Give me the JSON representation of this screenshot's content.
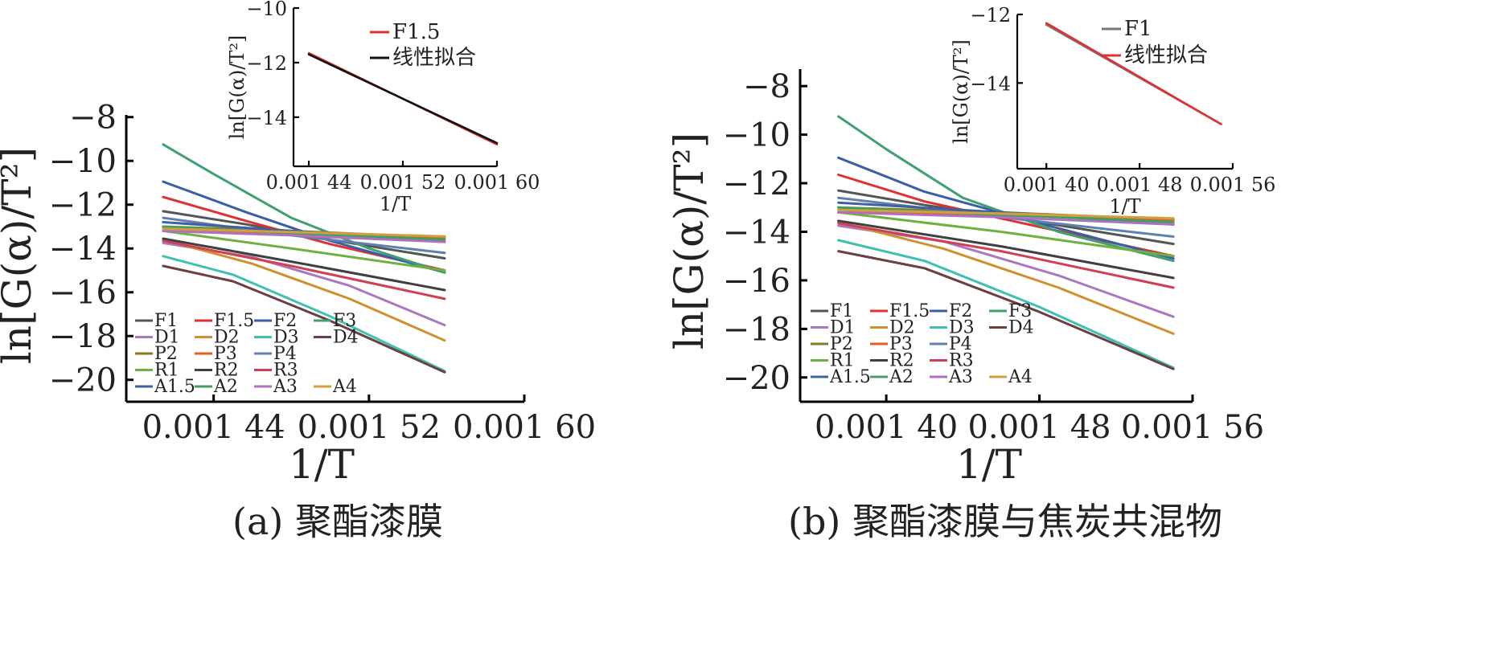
{
  "chart_data": [
    {
      "type": "line",
      "caption": "(a) 聚酯漆膜",
      "xlabel": "1/T",
      "ylabel": "ln[G(α)/T²]",
      "xlim": [
        0.001395,
        0.0016
      ],
      "ylim": [
        -21,
        -7.9
      ],
      "xticks": [
        0.00144,
        0.00152,
        0.0016
      ],
      "xtick_labels": [
        "0.001 44",
        "0.001 52",
        "0.001 60"
      ],
      "yticks": [
        -20,
        -18,
        -16,
        -14,
        -12,
        -10,
        -8
      ],
      "ytick_labels": [
        "−20",
        "−18",
        "−16",
        "−14",
        "−12",
        "−10",
        "−8"
      ],
      "legend_placement": "bottom-left",
      "series": [
        {
          "name": "F1",
          "color": "#555555",
          "points": [
            [
              0.001414,
              -12.3
            ],
            [
              0.001457,
              -12.9
            ],
            [
              0.0015,
              -13.6
            ],
            [
              0.001559,
              -14.45
            ]
          ]
        },
        {
          "name": "F1.5",
          "color": "#e03030",
          "points": [
            [
              0.001414,
              -11.65
            ],
            [
              0.001457,
              -12.75
            ],
            [
              0.0015,
              -13.8
            ],
            [
              0.001559,
              -15.0
            ]
          ]
        },
        {
          "name": "F2",
          "color": "#3a5fa8",
          "points": [
            [
              0.001414,
              -10.95
            ],
            [
              0.001457,
              -12.35
            ],
            [
              0.0015,
              -13.65
            ],
            [
              0.001559,
              -15.1
            ]
          ]
        },
        {
          "name": "F3",
          "color": "#3fa070",
          "points": [
            [
              0.001414,
              -9.25
            ],
            [
              0.00144,
              -10.6
            ],
            [
              0.00148,
              -12.6
            ],
            [
              0.00152,
              -14.0
            ],
            [
              0.001559,
              -15.1
            ]
          ]
        },
        {
          "name": "D1",
          "color": "#a878c0",
          "points": [
            [
              0.001414,
              -13.75
            ],
            [
              0.00146,
              -14.4
            ],
            [
              0.00151,
              -15.7
            ],
            [
              0.001559,
              -17.5
            ]
          ]
        },
        {
          "name": "D2",
          "color": "#d09030",
          "points": [
            [
              0.001414,
              -13.6
            ],
            [
              0.00146,
              -14.7
            ],
            [
              0.00151,
              -16.3
            ],
            [
              0.001559,
              -18.2
            ]
          ]
        },
        {
          "name": "D3",
          "color": "#40c0b0",
          "points": [
            [
              0.001414,
              -14.35
            ],
            [
              0.00145,
              -15.2
            ],
            [
              0.0015,
              -17.1
            ],
            [
              0.001559,
              -19.6
            ]
          ]
        },
        {
          "name": "D4",
          "color": "#6a4040",
          "points": [
            [
              0.001414,
              -14.8
            ],
            [
              0.00145,
              -15.5
            ],
            [
              0.0015,
              -17.3
            ],
            [
              0.001559,
              -19.65
            ]
          ]
        },
        {
          "name": "P2",
          "color": "#8a7a20",
          "points": [
            [
              0.001414,
              -13.0
            ],
            [
              0.00148,
              -13.2
            ],
            [
              0.001559,
              -13.5
            ]
          ]
        },
        {
          "name": "P3",
          "color": "#e06020",
          "points": [
            [
              0.001414,
              -13.2
            ],
            [
              0.00148,
              -13.3
            ],
            [
              0.001559,
              -13.5
            ]
          ]
        },
        {
          "name": "P4",
          "color": "#6080b0",
          "points": [
            [
              0.001414,
              -12.6
            ],
            [
              0.00148,
              -13.4
            ],
            [
              0.001559,
              -14.2
            ]
          ]
        },
        {
          "name": "R1",
          "color": "#70b040",
          "points": [
            [
              0.001414,
              -13.2
            ],
            [
              0.00148,
              -14.0
            ],
            [
              0.001559,
              -15.0
            ]
          ]
        },
        {
          "name": "R2",
          "color": "#404040",
          "points": [
            [
              0.001414,
              -13.55
            ],
            [
              0.00148,
              -14.6
            ],
            [
              0.001559,
              -15.9
            ]
          ]
        },
        {
          "name": "R3",
          "color": "#d04050",
          "points": [
            [
              0.001414,
              -13.65
            ],
            [
              0.00148,
              -14.8
            ],
            [
              0.001559,
              -16.3
            ]
          ]
        },
        {
          "name": "A1.5",
          "color": "#4060a0",
          "points": [
            [
              0.001414,
              -12.8
            ],
            [
              0.00148,
              -13.2
            ],
            [
              0.001559,
              -13.7
            ]
          ]
        },
        {
          "name": "A2",
          "color": "#40a060",
          "points": [
            [
              0.001414,
              -13.0
            ],
            [
              0.00148,
              -13.3
            ],
            [
              0.001559,
              -13.6
            ]
          ]
        },
        {
          "name": "A3",
          "color": "#b070c0",
          "points": [
            [
              0.001414,
              -13.2
            ],
            [
              0.00148,
              -13.4
            ],
            [
              0.001559,
              -13.7
            ]
          ]
        },
        {
          "name": "A4",
          "color": "#d0a040",
          "points": [
            [
              0.001414,
              -13.1
            ],
            [
              0.00148,
              -13.25
            ],
            [
              0.001559,
              -13.45
            ]
          ]
        }
      ],
      "legend": [
        {
          "name": "F1",
          "color": "#555555"
        },
        {
          "name": "F1.5",
          "color": "#e03030"
        },
        {
          "name": "F2",
          "color": "#3a5fa8"
        },
        {
          "name": "F3",
          "color": "#3fa070"
        },
        {
          "name": "D1",
          "color": "#a878c0"
        },
        {
          "name": "D2",
          "color": "#d09030"
        },
        {
          "name": "D3",
          "color": "#40c0b0"
        },
        {
          "name": "D4",
          "color": "#6a4040"
        },
        {
          "name": "P2",
          "color": "#8a7a20"
        },
        {
          "name": "P3",
          "color": "#e06020"
        },
        {
          "name": "P4",
          "color": "#6080b0"
        },
        {
          "name": "",
          "color": ""
        },
        {
          "name": "R1",
          "color": "#70b040"
        },
        {
          "name": "R2",
          "color": "#404040"
        },
        {
          "name": "R3",
          "color": "#d04050"
        },
        {
          "name": "",
          "color": ""
        },
        {
          "name": "A1.5",
          "color": "#4060a0"
        },
        {
          "name": "A2",
          "color": "#40a060"
        },
        {
          "name": "A3",
          "color": "#b070c0"
        },
        {
          "name": "A4",
          "color": "#d0a040"
        }
      ],
      "inset": {
        "xlabel": "1/T",
        "ylabel": "ln[G(α)/T²]",
        "xlim": [
          0.001427,
          0.0016
        ],
        "ylim": [
          -15.8,
          -10
        ],
        "xticks": [
          0.00144,
          0.00152,
          0.0016
        ],
        "xtick_labels": [
          "0.001 44",
          "0.001 52",
          "0.001 60"
        ],
        "yticks": [
          -14,
          -12,
          -10
        ],
        "ytick_labels": [
          "−14",
          "−12",
          "−10"
        ],
        "series": [
          {
            "name": "F1.5",
            "color": "#e03030",
            "points": [
              [
                0.00144,
                -11.65
              ],
              [
                0.0016,
                -15.0
              ]
            ]
          },
          {
            "name": "线性拟合",
            "color": "#111111",
            "points": [
              [
                0.00144,
                -11.7
              ],
              [
                0.0016,
                -14.95
              ]
            ]
          }
        ]
      }
    },
    {
      "type": "line",
      "caption": "(b) 聚酯漆膜与焦炭共混物",
      "xlabel": "1/T",
      "ylabel": "ln[G(α)/T²]",
      "xlim": [
        0.001355,
        0.00156
      ],
      "ylim": [
        -21,
        -7.3
      ],
      "xticks": [
        0.0014,
        0.00148,
        0.00156
      ],
      "xtick_labels": [
        "0.001 40",
        "0.001 48",
        "0.001 56"
      ],
      "yticks": [
        -20,
        -18,
        -16,
        -14,
        -12,
        -10,
        -8
      ],
      "ytick_labels": [
        "−20",
        "−18",
        "−16",
        "−14",
        "−12",
        "−10",
        "−8"
      ],
      "legend_placement": "bottom-left",
      "series": [
        {
          "name": "F1",
          "color": "#555555",
          "points": [
            [
              0.001375,
              -12.3
            ],
            [
              0.00142,
              -12.9
            ],
            [
              0.00148,
              -13.6
            ],
            [
              0.00155,
              -14.5
            ]
          ]
        },
        {
          "name": "F1.5",
          "color": "#e03030",
          "points": [
            [
              0.001375,
              -11.65
            ],
            [
              0.00142,
              -12.75
            ],
            [
              0.00148,
              -13.8
            ],
            [
              0.00155,
              -15.0
            ]
          ]
        },
        {
          "name": "F2",
          "color": "#3a5fa8",
          "points": [
            [
              0.001375,
              -10.95
            ],
            [
              0.00142,
              -12.35
            ],
            [
              0.00148,
              -13.65
            ],
            [
              0.00155,
              -15.1
            ]
          ]
        },
        {
          "name": "F3",
          "color": "#3fa070",
          "points": [
            [
              0.001375,
              -9.25
            ],
            [
              0.0014,
              -10.6
            ],
            [
              0.00144,
              -12.6
            ],
            [
              0.00149,
              -14.0
            ],
            [
              0.00155,
              -15.2
            ]
          ]
        },
        {
          "name": "D1",
          "color": "#a878c0",
          "points": [
            [
              0.001375,
              -13.75
            ],
            [
              0.00143,
              -14.4
            ],
            [
              0.00149,
              -15.8
            ],
            [
              0.00155,
              -17.5
            ]
          ]
        },
        {
          "name": "D2",
          "color": "#d09030",
          "points": [
            [
              0.001375,
              -13.6
            ],
            [
              0.00143,
              -14.7
            ],
            [
              0.00149,
              -16.3
            ],
            [
              0.00155,
              -18.2
            ]
          ]
        },
        {
          "name": "D3",
          "color": "#40c0b0",
          "points": [
            [
              0.001375,
              -14.35
            ],
            [
              0.00142,
              -15.2
            ],
            [
              0.00148,
              -17.1
            ],
            [
              0.00155,
              -19.6
            ]
          ]
        },
        {
          "name": "D4",
          "color": "#6a4040",
          "points": [
            [
              0.001375,
              -14.8
            ],
            [
              0.00142,
              -15.5
            ],
            [
              0.00148,
              -17.3
            ],
            [
              0.00155,
              -19.65
            ]
          ]
        },
        {
          "name": "P2",
          "color": "#8a7a20",
          "points": [
            [
              0.001375,
              -13.0
            ],
            [
              0.00146,
              -13.2
            ],
            [
              0.00155,
              -13.5
            ]
          ]
        },
        {
          "name": "P3",
          "color": "#e06020",
          "points": [
            [
              0.001375,
              -13.2
            ],
            [
              0.00146,
              -13.3
            ],
            [
              0.00155,
              -13.5
            ]
          ]
        },
        {
          "name": "P4",
          "color": "#6080b0",
          "points": [
            [
              0.001375,
              -12.6
            ],
            [
              0.00146,
              -13.4
            ],
            [
              0.00155,
              -14.2
            ]
          ]
        },
        {
          "name": "R1",
          "color": "#70b040",
          "points": [
            [
              0.001375,
              -13.2
            ],
            [
              0.00146,
              -14.0
            ],
            [
              0.00155,
              -15.0
            ]
          ]
        },
        {
          "name": "R2",
          "color": "#404040",
          "points": [
            [
              0.001375,
              -13.55
            ],
            [
              0.00146,
              -14.6
            ],
            [
              0.00155,
              -15.9
            ]
          ]
        },
        {
          "name": "R3",
          "color": "#d04050",
          "points": [
            [
              0.001375,
              -13.65
            ],
            [
              0.00146,
              -14.8
            ],
            [
              0.00155,
              -16.3
            ]
          ]
        },
        {
          "name": "A1.5",
          "color": "#4060a0",
          "points": [
            [
              0.001375,
              -12.8
            ],
            [
              0.00146,
              -13.2
            ],
            [
              0.00155,
              -13.7
            ]
          ]
        },
        {
          "name": "A2",
          "color": "#40a060",
          "points": [
            [
              0.001375,
              -13.0
            ],
            [
              0.00146,
              -13.3
            ],
            [
              0.00155,
              -13.6
            ]
          ]
        },
        {
          "name": "A3",
          "color": "#b070c0",
          "points": [
            [
              0.001375,
              -13.2
            ],
            [
              0.00146,
              -13.4
            ],
            [
              0.00155,
              -13.7
            ]
          ]
        },
        {
          "name": "A4",
          "color": "#d0a040",
          "points": [
            [
              0.001375,
              -13.1
            ],
            [
              0.00146,
              -13.25
            ],
            [
              0.00155,
              -13.45
            ]
          ]
        }
      ],
      "legend": [
        {
          "name": "F1",
          "color": "#555555"
        },
        {
          "name": "F1.5",
          "color": "#e03030"
        },
        {
          "name": "F2",
          "color": "#3a5fa8"
        },
        {
          "name": "F3",
          "color": "#3fa070"
        },
        {
          "name": "D1",
          "color": "#a878c0"
        },
        {
          "name": "D2",
          "color": "#d09030"
        },
        {
          "name": "D3",
          "color": "#40c0b0"
        },
        {
          "name": "D4",
          "color": "#6a4040"
        },
        {
          "name": "P2",
          "color": "#8a7a20"
        },
        {
          "name": "P3",
          "color": "#e06020"
        },
        {
          "name": "P4",
          "color": "#6080b0"
        },
        {
          "name": "",
          "color": ""
        },
        {
          "name": "R1",
          "color": "#70b040"
        },
        {
          "name": "R2",
          "color": "#404040"
        },
        {
          "name": "R3",
          "color": "#d04050"
        },
        {
          "name": "",
          "color": ""
        },
        {
          "name": "A1.5",
          "color": "#4060a0"
        },
        {
          "name": "A2",
          "color": "#40a060"
        },
        {
          "name": "A3",
          "color": "#b070c0"
        },
        {
          "name": "A4",
          "color": "#d0a040"
        }
      ],
      "inset": {
        "xlabel": "1/T",
        "ylabel": "ln[G(α)/T²]",
        "xlim": [
          0.001375,
          0.00156
        ],
        "ylim": [
          -16.5,
          -12
        ],
        "xticks": [
          0.0014,
          0.00148,
          0.00156
        ],
        "xtick_labels": [
          "0.001 40",
          "0.001 48",
          "0.001 56"
        ],
        "yticks": [
          -14,
          -12
        ],
        "ytick_labels": [
          "−14",
          "−12"
        ],
        "series": [
          {
            "name": "F1",
            "color": "#777777",
            "points": [
              [
                0.0014,
                -12.3
              ],
              [
                0.00155,
                -15.2
              ]
            ]
          },
          {
            "name": "线性拟合",
            "color": "#e03030",
            "points": [
              [
                0.0014,
                -12.25
              ],
              [
                0.00155,
                -15.2
              ]
            ]
          }
        ]
      }
    }
  ]
}
